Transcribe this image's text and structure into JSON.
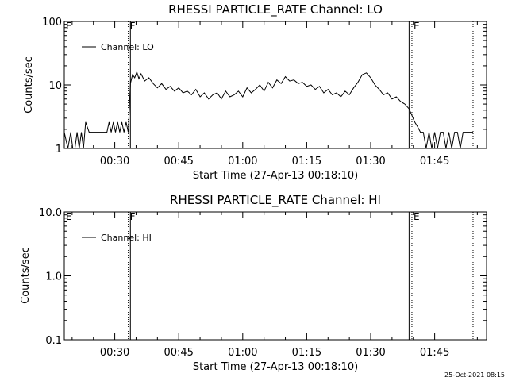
{
  "chart_data": [
    {
      "type": "line",
      "title": "RHESSI PARTICLE_RATE Channel: LO",
      "ylabel": "Counts/sec",
      "xlabel": "Start Time (27-Apr-13 00:18:10)",
      "yscale": "log",
      "ylim": [
        1,
        100
      ],
      "ytick_labels": [
        "1",
        "10",
        "100"
      ],
      "xlim": [
        "00:18:10",
        "01:57:10"
      ],
      "xtick_labels": [
        "00:30",
        "00:45",
        "01:00",
        "01:15",
        "01:30",
        "01:45"
      ],
      "legend": "top-left",
      "grid": false,
      "markers": [
        {
          "label": "E",
          "time": "00:18:10",
          "style": "solid"
        },
        {
          "label": "F",
          "time": "00:33:10",
          "style": "dotted"
        },
        {
          "label": "",
          "time": "00:33:40",
          "style": "solid"
        },
        {
          "label": "",
          "time": "01:39:00",
          "style": "solid"
        },
        {
          "label": "E",
          "time": "01:39:40",
          "style": "dotted"
        },
        {
          "label": "",
          "time": "01:54:00",
          "style": "dotted"
        }
      ],
      "series": [
        {
          "name": "Channel: LO",
          "x": [
            "00:18:10",
            "00:19:00",
            "00:19:40",
            "00:20:10",
            "00:20:40",
            "00:21:10",
            "00:21:40",
            "00:22:10",
            "00:22:40",
            "00:23:10",
            "00:24:00",
            "00:27:00",
            "00:28:10",
            "00:28:40",
            "00:29:10",
            "00:29:40",
            "00:30:10",
            "00:30:40",
            "00:31:10",
            "00:31:40",
            "00:32:10",
            "00:32:40",
            "00:33:10",
            "00:33:40",
            "00:34:10",
            "00:34:40",
            "00:35:10",
            "00:35:40",
            "00:36:10",
            "00:37:00",
            "00:38:00",
            "00:39:00",
            "00:40:00",
            "00:41:00",
            "00:42:00",
            "00:43:00",
            "00:44:00",
            "00:45:00",
            "00:46:00",
            "00:47:00",
            "00:48:00",
            "00:49:00",
            "00:50:00",
            "00:51:00",
            "00:52:00",
            "00:53:00",
            "00:54:00",
            "00:55:00",
            "00:56:00",
            "00:57:00",
            "00:58:00",
            "00:59:00",
            "01:00:00",
            "01:01:00",
            "01:02:00",
            "01:03:00",
            "01:04:00",
            "01:05:00",
            "01:06:00",
            "01:07:00",
            "01:08:00",
            "01:09:00",
            "01:10:00",
            "01:11:00",
            "01:12:00",
            "01:13:00",
            "01:14:00",
            "01:15:00",
            "01:16:00",
            "01:17:00",
            "01:18:00",
            "01:19:00",
            "01:20:00",
            "01:21:00",
            "01:22:00",
            "01:23:00",
            "01:24:00",
            "01:25:00",
            "01:26:00",
            "01:27:00",
            "01:28:00",
            "01:29:00",
            "01:30:00",
            "01:31:00",
            "01:32:00",
            "01:33:00",
            "01:34:00",
            "01:35:00",
            "01:36:00",
            "01:37:00",
            "01:38:00",
            "01:39:00",
            "01:39:40",
            "01:40:20",
            "01:41:00",
            "01:41:40",
            "01:42:20",
            "01:43:00",
            "01:43:40",
            "01:44:20",
            "01:45:00",
            "01:45:40",
            "01:46:20",
            "01:47:00",
            "01:47:40",
            "01:48:20",
            "01:49:00",
            "01:49:40",
            "01:50:20",
            "01:51:00",
            "01:51:40",
            "01:52:20",
            "01:53:00",
            "01:53:30",
            "01:54:00"
          ],
          "y": [
            1.8,
            1.0,
            1.8,
            1.0,
            1.0,
            1.8,
            1.0,
            1.8,
            1.0,
            2.6,
            1.8,
            1.8,
            1.8,
            2.6,
            1.8,
            2.6,
            1.8,
            2.6,
            1.8,
            2.6,
            1.8,
            2.6,
            1.8,
            10.5,
            14.5,
            13.0,
            16.0,
            12.5,
            15.0,
            11.5,
            13.0,
            10.5,
            9.0,
            10.5,
            8.5,
            9.5,
            8.0,
            9.0,
            7.5,
            8.0,
            7.0,
            8.5,
            6.5,
            7.5,
            6.0,
            7.0,
            7.5,
            6.0,
            8.0,
            6.5,
            7.0,
            8.0,
            6.5,
            9.0,
            7.5,
            8.5,
            10.0,
            8.0,
            11.0,
            9.0,
            12.0,
            10.5,
            13.5,
            11.5,
            12.0,
            10.5,
            11.0,
            9.5,
            10.0,
            8.5,
            9.5,
            7.5,
            8.5,
            7.0,
            7.5,
            6.5,
            8.0,
            7.0,
            9.0,
            11.0,
            14.5,
            15.5,
            13.0,
            10.0,
            8.5,
            7.0,
            7.5,
            6.0,
            6.5,
            5.5,
            5.0,
            4.2,
            3.3,
            2.6,
            2.2,
            1.8,
            1.8,
            1.0,
            1.8,
            1.0,
            1.8,
            1.0,
            1.8,
            1.8,
            1.0,
            1.8,
            1.0,
            1.8,
            1.8,
            1.0,
            1.8,
            1.8,
            1.8,
            1.8,
            1.8
          ]
        }
      ]
    },
    {
      "type": "line",
      "title": "RHESSI PARTICLE_RATE Channel: HI",
      "ylabel": "Counts/sec",
      "xlabel": "Start Time (27-Apr-13 00:18:10)",
      "yscale": "log",
      "ylim": [
        0.1,
        10
      ],
      "ytick_labels": [
        "0.1",
        "1.0",
        "10.0"
      ],
      "xlim": [
        "00:18:10",
        "01:57:10"
      ],
      "xtick_labels": [
        "00:30",
        "00:45",
        "01:00",
        "01:15",
        "01:30",
        "01:45"
      ],
      "legend": "top-left",
      "grid": false,
      "markers": [
        {
          "label": "E",
          "time": "00:18:10",
          "style": "solid"
        },
        {
          "label": "F",
          "time": "00:33:10",
          "style": "dotted"
        },
        {
          "label": "",
          "time": "00:33:40",
          "style": "solid"
        },
        {
          "label": "",
          "time": "01:39:00",
          "style": "solid"
        },
        {
          "label": "E",
          "time": "01:39:40",
          "style": "dotted"
        },
        {
          "label": "",
          "time": "01:54:00",
          "style": "dotted"
        }
      ],
      "series": [
        {
          "name": "Channel: HI",
          "x": [],
          "y": []
        }
      ]
    }
  ],
  "footer": {
    "timestamp": "25-Oct-2021 08:15"
  }
}
